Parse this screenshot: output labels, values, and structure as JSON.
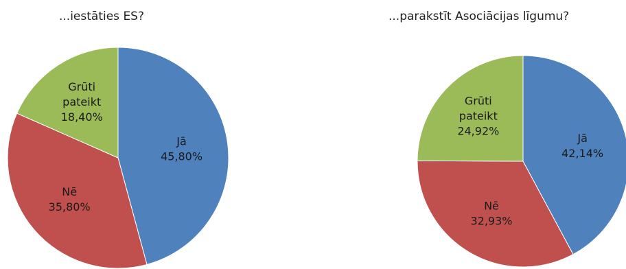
{
  "chart_data": [
    {
      "type": "pie",
      "title": "...iestāties ES?",
      "slices": [
        {
          "name": "Jā",
          "value": 45.8,
          "label": "45,80%",
          "color": "#4f81bd"
        },
        {
          "name": "Nē",
          "value": 35.8,
          "label": "35,80%",
          "color": "#c0504d"
        },
        {
          "name": "Grūti pateikt",
          "value": 18.4,
          "label": "18,40%",
          "color": "#9bbb59"
        }
      ]
    },
    {
      "type": "pie",
      "title": "...parakstīt Asociācijas līgumu?",
      "slices": [
        {
          "name": "Jā",
          "value": 42.14,
          "label": "42,14%",
          "color": "#4f81bd"
        },
        {
          "name": "Nē",
          "value": 32.93,
          "label": "32,93%",
          "color": "#c0504d"
        },
        {
          "name": "Grūti pateikt",
          "value": 24.92,
          "label": "24,92%",
          "color": "#9bbb59"
        }
      ]
    }
  ]
}
